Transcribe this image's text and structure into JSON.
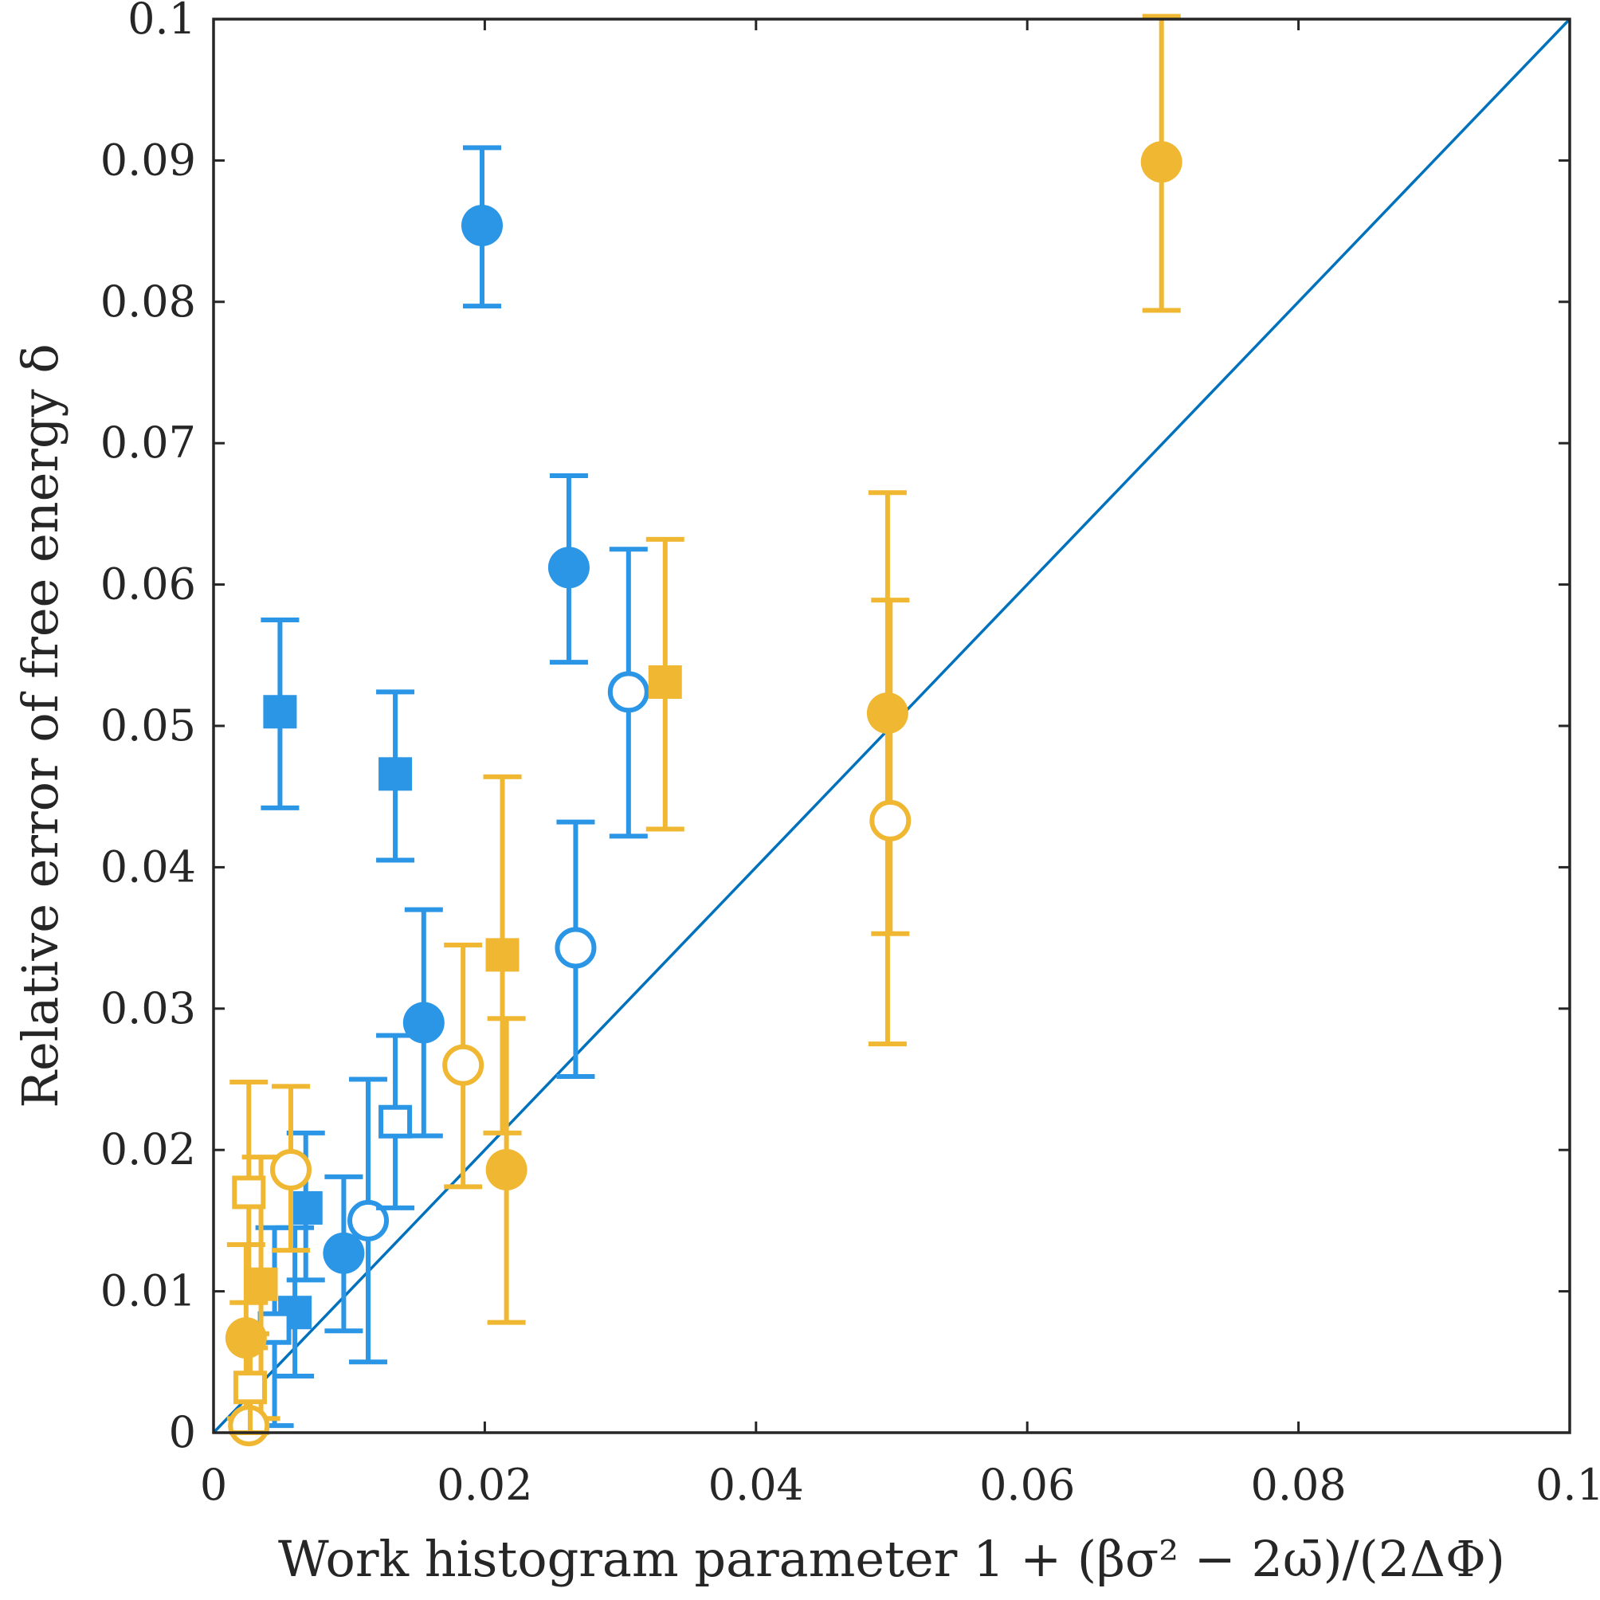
{
  "chart_data": {
    "type": "scatter",
    "title": "",
    "xlabel": "Work histogram parameter 1 + (βσ² − 2ω̄)/(2ΔΦ)",
    "ylabel": "Relative error of free energy δ",
    "xlim": [
      0,
      0.1
    ],
    "ylim": [
      0,
      0.1
    ],
    "x_ticks": [
      0,
      0.02,
      0.04,
      0.06,
      0.08,
      0.1
    ],
    "y_ticks": [
      0,
      0.01,
      0.02,
      0.03,
      0.04,
      0.05,
      0.06,
      0.07,
      0.08,
      0.09,
      0.1
    ],
    "x_tick_labels": [
      "0",
      "0.02",
      "0.04",
      "0.06",
      "0.08",
      "0.1"
    ],
    "y_tick_labels": [
      "0",
      "0.01",
      "0.02",
      "0.03",
      "0.04",
      "0.05",
      "0.06",
      "0.07",
      "0.08",
      "0.09",
      "0.1"
    ],
    "grid": false,
    "legend": "none",
    "reference_line": {
      "from": [
        0,
        0
      ],
      "to": [
        0.1,
        0.1
      ],
      "color": "#0072BD"
    },
    "colors": {
      "blue": "#2B95E6",
      "yellow": "#F0B733"
    },
    "series": [
      {
        "color": "blue",
        "marker": "filled-circle",
        "points": [
          {
            "x": 0.0198,
            "y": 0.0854,
            "err_low": 0.0797,
            "err_high": 0.0909
          },
          {
            "x": 0.0262,
            "y": 0.0612,
            "err_low": 0.0545,
            "err_high": 0.0677
          },
          {
            "x": 0.0155,
            "y": 0.029,
            "err_low": 0.021,
            "err_high": 0.037
          },
          {
            "x": 0.0096,
            "y": 0.0127,
            "err_low": 0.0072,
            "err_high": 0.0181
          }
        ]
      },
      {
        "color": "blue",
        "marker": "filled-square",
        "points": [
          {
            "x": 0.0049,
            "y": 0.051,
            "err_low": 0.0442,
            "err_high": 0.0575
          },
          {
            "x": 0.0134,
            "y": 0.0466,
            "err_low": 0.0405,
            "err_high": 0.0524
          },
          {
            "x": 0.0068,
            "y": 0.0159,
            "err_low": 0.0108,
            "err_high": 0.0212
          },
          {
            "x": 0.006,
            "y": 0.0085,
            "err_low": 0.004,
            "err_high": 0.0145
          }
        ]
      },
      {
        "color": "blue",
        "marker": "open-circle",
        "points": [
          {
            "x": 0.0306,
            "y": 0.0524,
            "err_low": 0.0422,
            "err_high": 0.0625
          },
          {
            "x": 0.0267,
            "y": 0.0343,
            "err_low": 0.0252,
            "err_high": 0.0432
          },
          {
            "x": 0.0114,
            "y": 0.015,
            "err_low": 0.005,
            "err_high": 0.025
          }
        ]
      },
      {
        "color": "blue",
        "marker": "open-square",
        "points": [
          {
            "x": 0.0134,
            "y": 0.022,
            "err_low": 0.0159,
            "err_high": 0.0281
          },
          {
            "x": 0.0045,
            "y": 0.0074,
            "err_low": 0.0005,
            "err_high": 0.0145
          }
        ]
      },
      {
        "color": "yellow",
        "marker": "filled-circle",
        "points": [
          {
            "x": 0.0699,
            "y": 0.0899,
            "err_low": 0.0794,
            "err_high": 0.1002
          },
          {
            "x": 0.0497,
            "y": 0.0509,
            "err_low": 0.0275,
            "err_high": 0.0665
          },
          {
            "x": 0.0216,
            "y": 0.0186,
            "err_low": 0.0078,
            "err_high": 0.0293
          },
          {
            "x": 0.0024,
            "y": 0.0067,
            "err_low": 0.001,
            "err_high": 0.0133
          }
        ]
      },
      {
        "color": "yellow",
        "marker": "filled-square",
        "points": [
          {
            "x": 0.0333,
            "y": 0.0531,
            "err_low": 0.0427,
            "err_high": 0.0632
          },
          {
            "x": 0.0213,
            "y": 0.0338,
            "err_low": 0.0212,
            "err_high": 0.0464
          },
          {
            "x": 0.0035,
            "y": 0.0105,
            "err_low": 0.001,
            "err_high": 0.0195
          }
        ]
      },
      {
        "color": "yellow",
        "marker": "open-circle",
        "points": [
          {
            "x": 0.0499,
            "y": 0.0433,
            "err_low": 0.0353,
            "err_high": 0.0589
          },
          {
            "x": 0.0184,
            "y": 0.026,
            "err_low": 0.0174,
            "err_high": 0.0345
          },
          {
            "x": 0.0057,
            "y": 0.0186,
            "err_low": 0.0129,
            "err_high": 0.0245
          },
          {
            "x": 0.0026,
            "y": 0.0005,
            "err_low": 0.0,
            "err_high": 0.006
          }
        ]
      },
      {
        "color": "yellow",
        "marker": "open-square",
        "points": [
          {
            "x": 0.0026,
            "y": 0.017,
            "err_low": 0.0092,
            "err_high": 0.0248
          },
          {
            "x": 0.0027,
            "y": 0.0032,
            "err_low": 0.0,
            "err_high": 0.007
          }
        ]
      }
    ]
  }
}
